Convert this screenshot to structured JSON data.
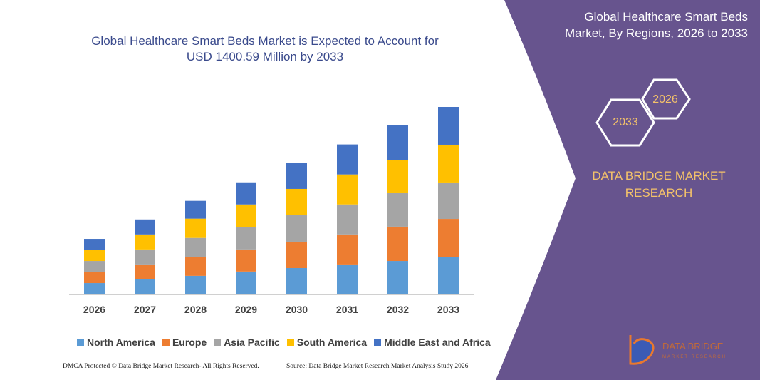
{
  "chart_data": {
    "type": "stacked_bar",
    "title": "Global Healthcare Smart Beds Market is Expected to Account for USD 1400.59 Million by 2033",
    "categories": [
      "2026",
      "2027",
      "2028",
      "2029",
      "2030",
      "2031",
      "2032",
      "2033"
    ],
    "series": [
      {
        "name": "North America",
        "color": "#5b9bd5",
        "values": [
          85,
          112,
          139,
          171,
          197,
          224,
          250,
          282
        ]
      },
      {
        "name": "Europe",
        "color": "#ed7d31",
        "values": [
          85,
          112,
          139,
          165,
          197,
          224,
          256,
          282
        ]
      },
      {
        "name": "Asia Pacific",
        "color": "#a5a5a5",
        "values": [
          80,
          112,
          144,
          165,
          197,
          224,
          250,
          272
        ]
      },
      {
        "name": "South America",
        "color": "#ffc000",
        "values": [
          85,
          112,
          144,
          171,
          197,
          224,
          250,
          282
        ]
      },
      {
        "name": "Middle East and Africa",
        "color": "#4472c4",
        "values": [
          80,
          112,
          133,
          165,
          192,
          224,
          256,
          282
        ]
      }
    ]
  },
  "panel": {
    "title": "Global Healthcare Smart Beds Market, By Regions, 2026 to 2033",
    "hexagons": [
      "2026",
      "2033"
    ],
    "brand": "DATA BRIDGE MARKET RESEARCH",
    "logo": [
      "DATA BRIDGE",
      "MARKET RESEARCH"
    ]
  },
  "footer": {
    "left": "DMCA Protected © Data Bridge Market Research- All Rights Reserved.",
    "right": "Source: Data Bridge Market Research Market Analysis Study 2026"
  }
}
